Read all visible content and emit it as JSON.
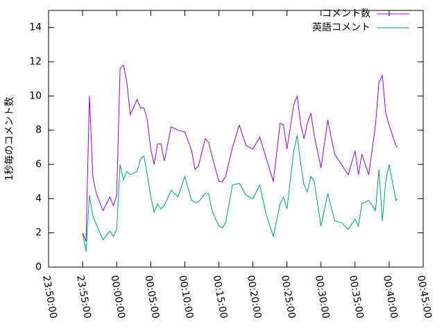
{
  "chart_data": {
    "type": "line",
    "ylabel": "1秒毎のコメント数",
    "x": [
      "23:55:00",
      "23:55:30",
      "23:56:00",
      "23:56:30",
      "23:57:00",
      "23:58:00",
      "23:59:00",
      "23:59:30",
      "00:00:00",
      "00:00:30",
      "00:01:00",
      "00:01:30",
      "00:02:00",
      "00:03:00",
      "00:03:30",
      "00:04:00",
      "00:04:30",
      "00:05:00",
      "00:05:30",
      "00:06:00",
      "00:06:30",
      "00:07:00",
      "00:08:00",
      "00:09:00",
      "00:10:00",
      "00:11:00",
      "00:11:30",
      "00:12:00",
      "00:13:00",
      "00:13:30",
      "00:14:00",
      "00:15:00",
      "00:15:30",
      "00:16:00",
      "00:17:00",
      "00:18:00",
      "00:19:00",
      "00:20:00",
      "00:21:00",
      "00:22:00",
      "00:23:00",
      "00:24:00",
      "00:24:30",
      "00:25:00",
      "00:26:00",
      "00:26:30",
      "00:27:00",
      "00:27:30",
      "00:28:00",
      "00:28:30",
      "00:29:00",
      "00:30:00",
      "00:31:00",
      "00:32:00",
      "00:33:00",
      "00:34:00",
      "00:35:00",
      "00:35:30",
      "00:36:00",
      "00:37:00",
      "00:38:00",
      "00:38:30",
      "00:39:00",
      "00:39:30",
      "00:40:00",
      "00:41:00",
      "00:41:15"
    ],
    "series": [
      {
        "name": "コメント数",
        "color": "#9400d3",
        "values": [
          2.0,
          1.5,
          10.0,
          5.3,
          4.3,
          3.3,
          4.1,
          3.6,
          4.2,
          11.6,
          11.8,
          10.8,
          8.9,
          9.8,
          9.3,
          9.3,
          8.6,
          6.9,
          6.0,
          7.2,
          7.2,
          6.2,
          8.2,
          8.0,
          7.9,
          6.8,
          5.7,
          5.9,
          7.5,
          7.3,
          6.5,
          5.0,
          5.0,
          5.3,
          7.0,
          8.3,
          7.1,
          6.9,
          7.6,
          6.3,
          5.0,
          8.4,
          8.3,
          6.9,
          9.5,
          10.0,
          8.4,
          7.5,
          8.4,
          9.0,
          7.7,
          5.8,
          8.6,
          6.6,
          6.0,
          5.4,
          6.8,
          5.4,
          6.6,
          5.4,
          8.3,
          10.8,
          11.2,
          9.0,
          8.3,
          7.1,
          7.0
        ]
      },
      {
        "name": "英語コメント",
        "color": "#009e73",
        "values": [
          2.0,
          0.9,
          4.2,
          3.0,
          2.5,
          1.6,
          2.1,
          1.8,
          2.2,
          6.0,
          5.1,
          5.6,
          5.4,
          5.6,
          6.3,
          6.5,
          5.4,
          4.1,
          3.2,
          3.7,
          3.4,
          3.6,
          4.5,
          4.1,
          5.3,
          3.9,
          3.8,
          3.8,
          4.3,
          4.3,
          3.3,
          2.4,
          2.3,
          2.6,
          4.8,
          4.9,
          4.2,
          4.0,
          4.8,
          3.0,
          1.8,
          3.7,
          4.1,
          3.4,
          6.8,
          7.7,
          6.1,
          4.8,
          4.4,
          5.3,
          5.0,
          2.4,
          4.3,
          2.7,
          2.6,
          2.2,
          2.8,
          2.4,
          3.7,
          3.9,
          3.3,
          5.7,
          2.7,
          5.0,
          6.0,
          3.9,
          4.0
        ]
      }
    ],
    "xlim": [
      "23:50:00",
      "00:45:00"
    ],
    "xticks": [
      "23:50:00",
      "23:55:00",
      "00:00:00",
      "00:05:00",
      "00:10:00",
      "00:15:00",
      "00:20:00",
      "00:25:00",
      "00:30:00",
      "00:35:00",
      "00:40:00",
      "00:45:00"
    ],
    "ylim": [
      0,
      15
    ],
    "yticks": [
      0,
      2,
      4,
      6,
      8,
      10,
      12,
      14
    ],
    "legend": "top-right"
  }
}
